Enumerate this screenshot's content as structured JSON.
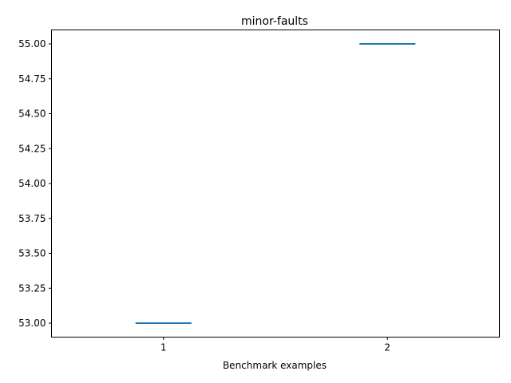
{
  "chart_data": {
    "type": "box",
    "title": "minor-faults",
    "xlabel": "Benchmark examples",
    "ylabel": "",
    "categories": [
      "1",
      "2"
    ],
    "values": [
      53.0,
      55.0
    ],
    "xlim": [
      0.5,
      2.5
    ],
    "ylim": [
      52.9,
      55.1
    ],
    "yticks": [
      53.0,
      53.25,
      53.5,
      53.75,
      54.0,
      54.25,
      54.5,
      54.75,
      55.0
    ],
    "ytick_labels": [
      "53.00",
      "53.25",
      "53.50",
      "53.75",
      "54.00",
      "54.25",
      "54.50",
      "54.75",
      "55.00"
    ],
    "grid": false,
    "line_color": "#1f77b4"
  }
}
